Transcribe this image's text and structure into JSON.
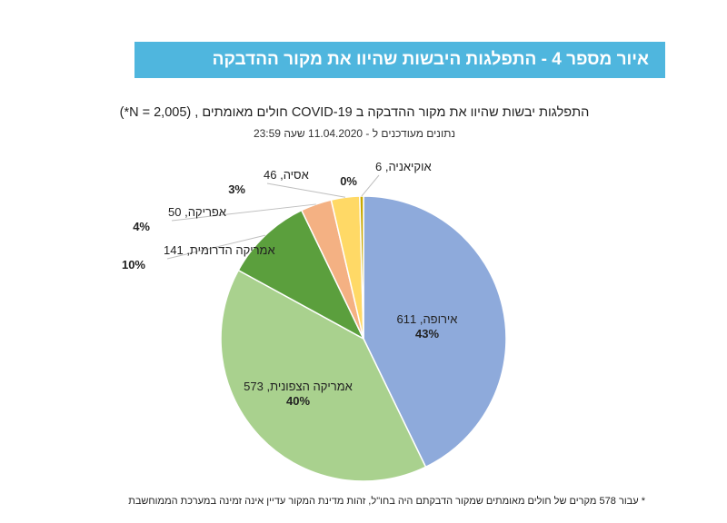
{
  "header": {
    "banner_title": "איור מספר 4 - התפלגות היבשות שהיוו את מקור ההדבקה",
    "banner_color": "#4fb6de"
  },
  "chart_data": {
    "type": "pie",
    "title": "התפלגות יבשות שהיוו את מקור ההדבקה ב COVID-19 חולים מאומתים , (N = 2,005*)",
    "subtitle": "נתונים מעודכנים ל - 11.04.2020 שעה 23:59",
    "slices": [
      {
        "name": "אירופה",
        "value": 611,
        "percent": "43%",
        "color": "#8eaadb"
      },
      {
        "name": "אמריקה הצפונית",
        "value": 573,
        "percent": "40%",
        "color": "#a9d18e"
      },
      {
        "name": "אמריקה הדרומית",
        "value": 141,
        "percent": "10%",
        "color": "#5b9f3d"
      },
      {
        "name": "אפריקה",
        "value": 50,
        "percent": "4%",
        "color": "#f4b183"
      },
      {
        "name": "אסיה",
        "value": 46,
        "percent": "3%",
        "color": "#ffd966"
      },
      {
        "name": "אוקיאניה",
        "value": 6,
        "percent": "0%",
        "color": "#c9a800"
      }
    ],
    "legend": "none"
  },
  "footnote": "* עבור 578 מקרים של חולים מאומתים שמקור הדבקתם היה בחו\"ל, זהות מדינת המקור עדיין אינה זמינה במערכת הממוחשבת"
}
